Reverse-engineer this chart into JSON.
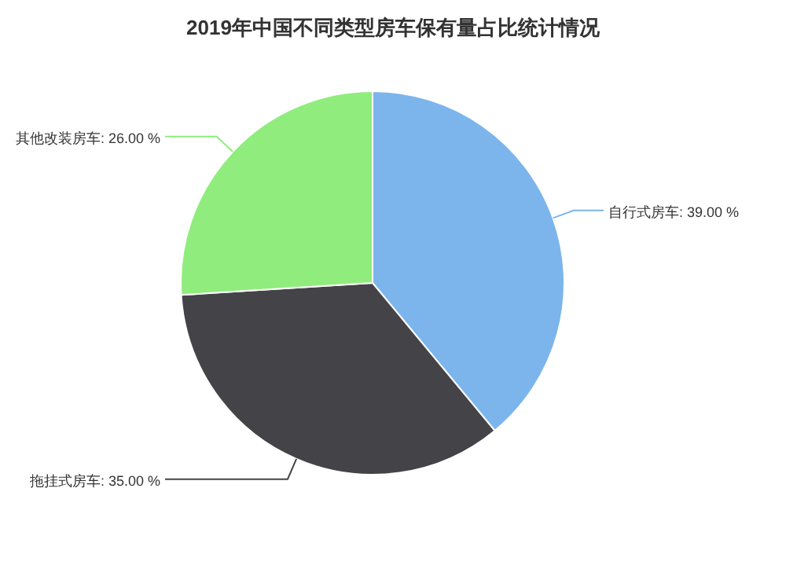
{
  "chart_data": {
    "type": "pie",
    "title": "2019年中国不同类型房车保有量占比统计情况",
    "categories": [
      "自行式房车",
      "拖挂式房车",
      "其他改装房车"
    ],
    "values": [
      39,
      35,
      26
    ],
    "value_labels": [
      "39.00 %",
      "35.00 %",
      "26.00 %"
    ],
    "colors": [
      "#7cb5ec",
      "#434348",
      "#90ed7d"
    ]
  }
}
